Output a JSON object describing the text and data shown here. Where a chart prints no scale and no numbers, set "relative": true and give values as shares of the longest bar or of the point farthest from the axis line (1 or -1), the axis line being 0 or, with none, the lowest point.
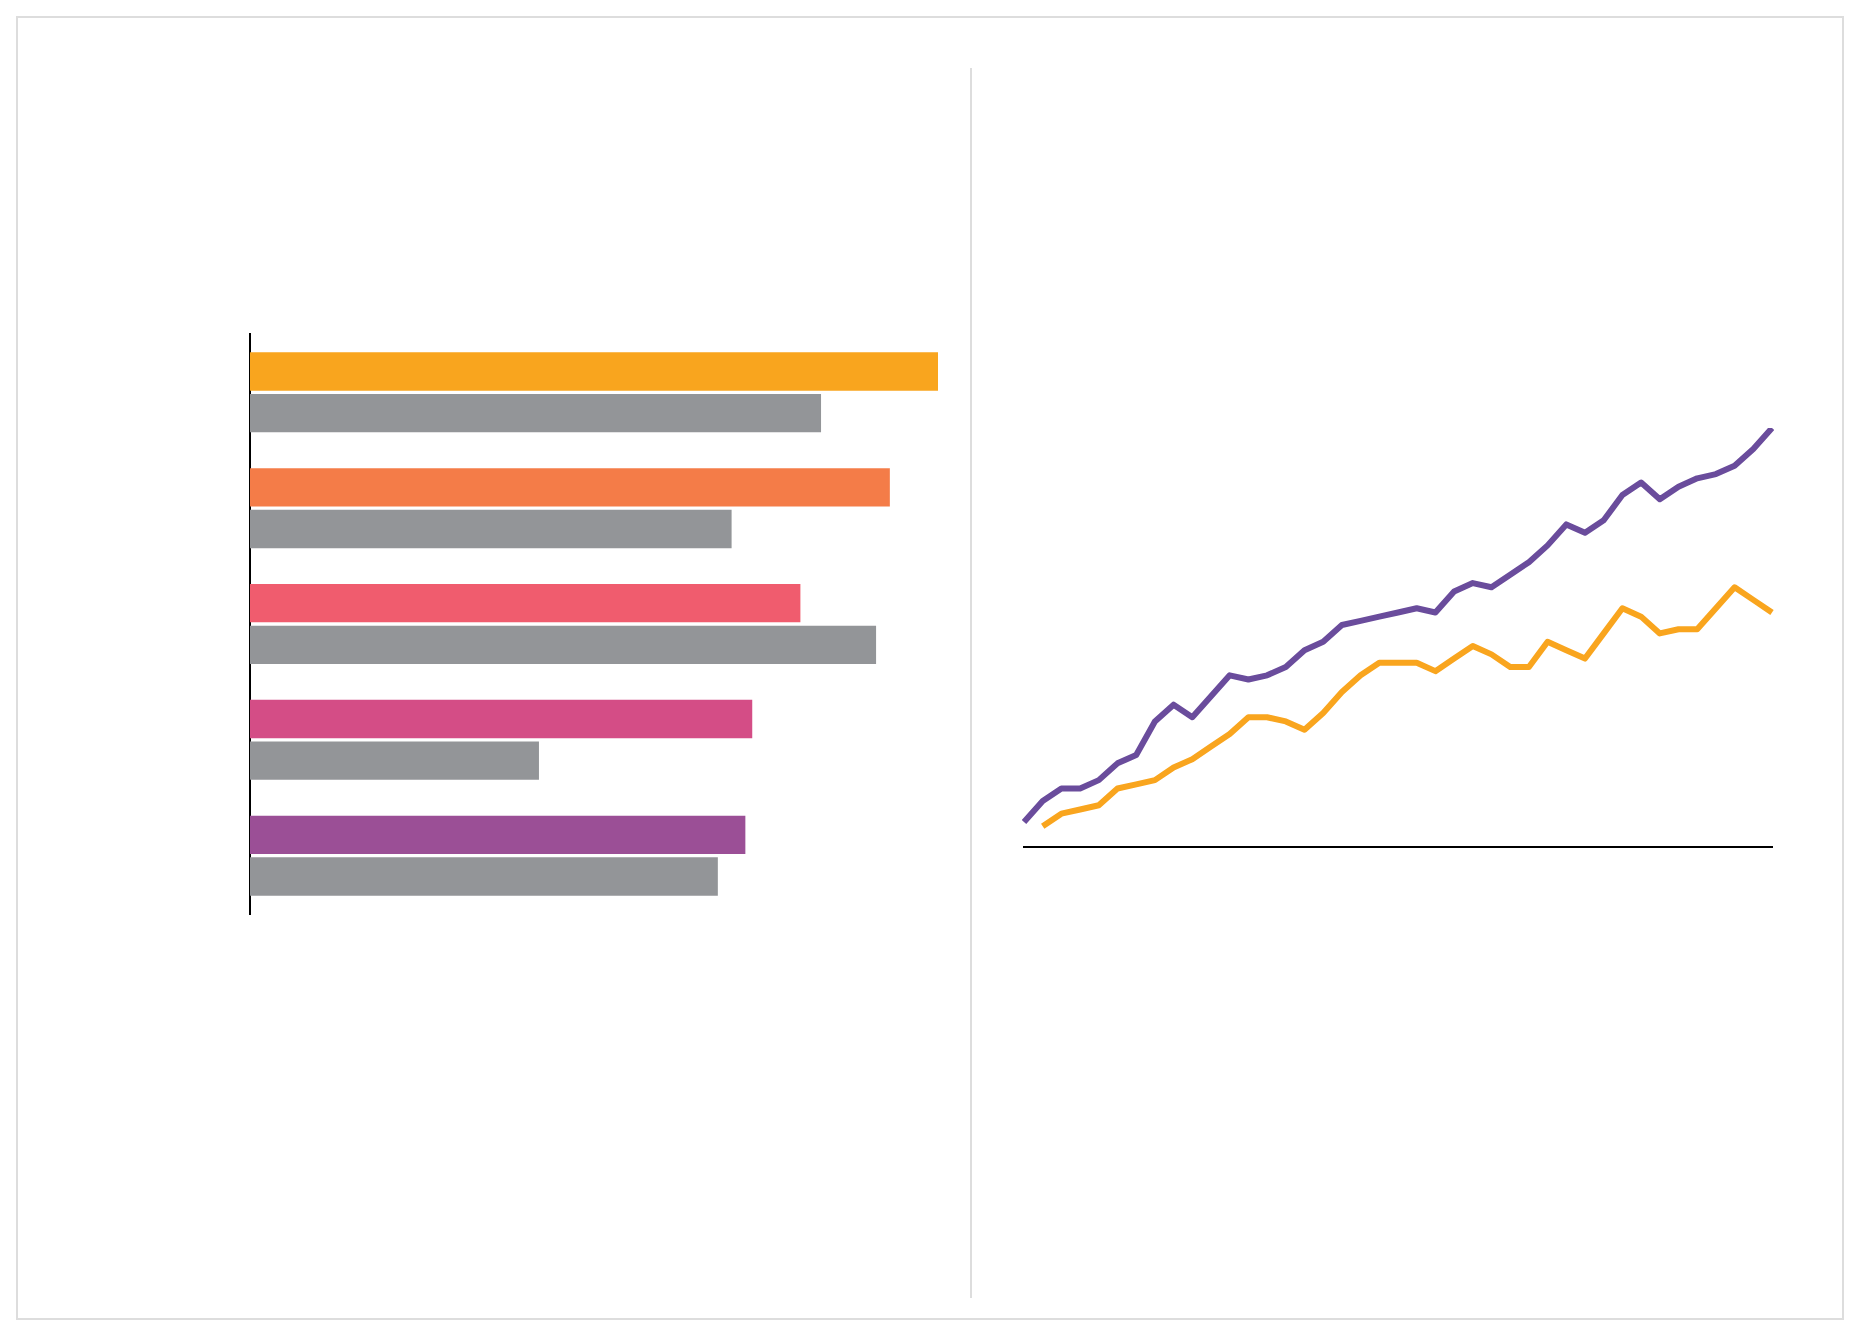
{
  "chart_data": [
    {
      "type": "bar",
      "orientation": "horizontal",
      "relative": true,
      "categories": [
        null,
        null,
        null,
        null,
        null
      ],
      "grid": false,
      "legend": false,
      "series": [
        {
          "colors": [
            "#f9a51e",
            "#f47c48",
            "#f05c6e",
            "#d44d86",
            "#9b4f96"
          ],
          "values": [
            1,
            0.93,
            0.8,
            0.73,
            0.72
          ]
        },
        {
          "color": "#939598",
          "values": [
            0.83,
            0.7,
            0.91,
            0.42,
            0.68
          ]
        }
      ]
    },
    {
      "type": "line",
      "relative": true,
      "grid": false,
      "legend": false,
      "categories": [
        null,
        null,
        null,
        null,
        null,
        null,
        null,
        null,
        null,
        null,
        null,
        null,
        null,
        null,
        null,
        null,
        null,
        null,
        null,
        null,
        null,
        null,
        null,
        null,
        null,
        null,
        null,
        null,
        null,
        null,
        null,
        null,
        null,
        null,
        null,
        null,
        null,
        null,
        null,
        null,
        null
      ],
      "series": [
        {
          "color": "#6a4c9c",
          "values": [
            0.06,
            0.11,
            0.14,
            0.14,
            0.16,
            0.2,
            0.22,
            0.3,
            0.34,
            0.31,
            0.36,
            0.41,
            0.4,
            0.41,
            0.43,
            0.47,
            0.49,
            0.53,
            0.54,
            0.55,
            0.56,
            0.57,
            0.56,
            0.61,
            0.63,
            0.62,
            0.65,
            0.68,
            0.72,
            0.77,
            0.75,
            0.78,
            0.84,
            0.87,
            0.83,
            0.86,
            0.88,
            0.89,
            0.91,
            0.95,
            1
          ]
        },
        {
          "color": "#f9a51e",
          "values": [
            null,
            0.05,
            0.08,
            0.09,
            0.1,
            0.14,
            0.15,
            0.16,
            0.19,
            0.21,
            0.24,
            0.27,
            0.31,
            0.31,
            0.3,
            0.28,
            0.32,
            0.37,
            0.41,
            0.44,
            0.44,
            0.44,
            0.42,
            0.45,
            0.48,
            0.46,
            0.43,
            0.43,
            0.49,
            0.47,
            0.45,
            0.51,
            0.57,
            0.55,
            0.51,
            0.52,
            0.52,
            0.57,
            0.62,
            0.59,
            0.56
          ]
        }
      ]
    }
  ]
}
